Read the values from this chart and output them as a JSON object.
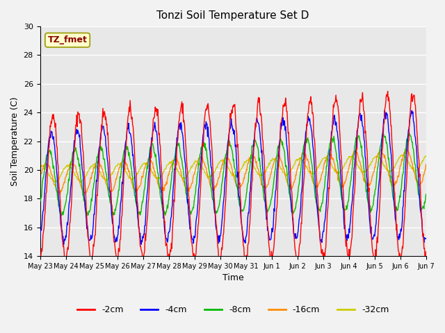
{
  "title": "Tonzi Soil Temperature Set D",
  "xlabel": "Time",
  "ylabel": "Soil Temperature (C)",
  "ylim": [
    14,
    30
  ],
  "yticks": [
    14,
    16,
    18,
    20,
    22,
    24,
    26,
    28,
    30
  ],
  "annotation_text": "TZ_fmet",
  "annotation_color": "#8B0000",
  "annotation_bg": "#FFFFCC",
  "colors": {
    "-2cm": "#FF0000",
    "-4cm": "#0000FF",
    "-8cm": "#00BB00",
    "-16cm": "#FF8C00",
    "-32cm": "#CCCC00"
  },
  "legend_labels": [
    "-2cm",
    "-4cm",
    "-8cm",
    "-16cm",
    "-32cm"
  ],
  "x_tick_labels": [
    "May 23",
    "May 24",
    "May 25",
    "May 26",
    "May 27",
    "May 28",
    "May 29",
    "May 30",
    "May 31",
    "Jun 1",
    "Jun 2",
    "Jun 3",
    "Jun 4",
    "Jun 5",
    "Jun 6",
    "Jun 7"
  ],
  "n_days": 16,
  "samples_per_day": 48,
  "background_color": "#E8E8E8",
  "grid_color": "#FFFFFF"
}
